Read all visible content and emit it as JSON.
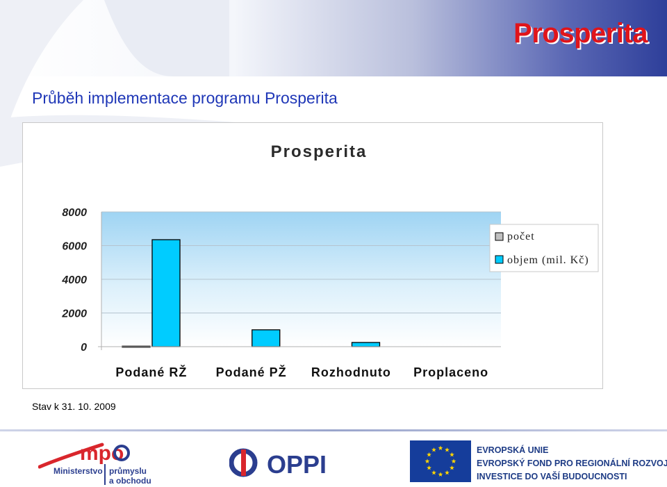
{
  "header": {
    "brand_title": "Prosperita",
    "subtitle": "Průběh implementace programu Prosperita"
  },
  "chart_data": {
    "type": "bar",
    "title": "Prosperita",
    "categories": [
      "Podané RŽ",
      "Podané PŽ",
      "Rozhodnuto",
      "Proplaceno"
    ],
    "series": [
      {
        "name": "počet",
        "values": [
          30,
          0,
          0,
          0
        ],
        "color": "#c0c0c0"
      },
      {
        "name": "objem (mil. Kč)",
        "values": [
          6350,
          1000,
          250,
          0
        ],
        "color": "#00ccff"
      }
    ],
    "y_ticks": [
      "8000",
      "6000",
      "4000",
      "2000",
      "0"
    ],
    "ylim": [
      0,
      8000
    ],
    "legend_position": "right",
    "grid": true
  },
  "footnote": "Stav k 31. 10. 2009",
  "footer": {
    "mpo_logo": {
      "brand": "mpo",
      "line1": "Ministerstvo",
      "line2": "průmyslu",
      "line3": "a obchodu"
    },
    "oppi_logo": {
      "text": "OPPI"
    },
    "eu": {
      "line1": "EVROPSKÁ UNIE",
      "line2": "EVROPSKÝ FOND PRO REGIONÁLNÍ ROZVOJ",
      "line3": "INVESTICE DO VAŠÍ BUDOUCNOSTI"
    }
  },
  "colors": {
    "accent_red": "#e0141a",
    "title_blue": "#1f37b7",
    "bar_cyan": "#00ccff",
    "eu_blue": "#153d9b"
  }
}
